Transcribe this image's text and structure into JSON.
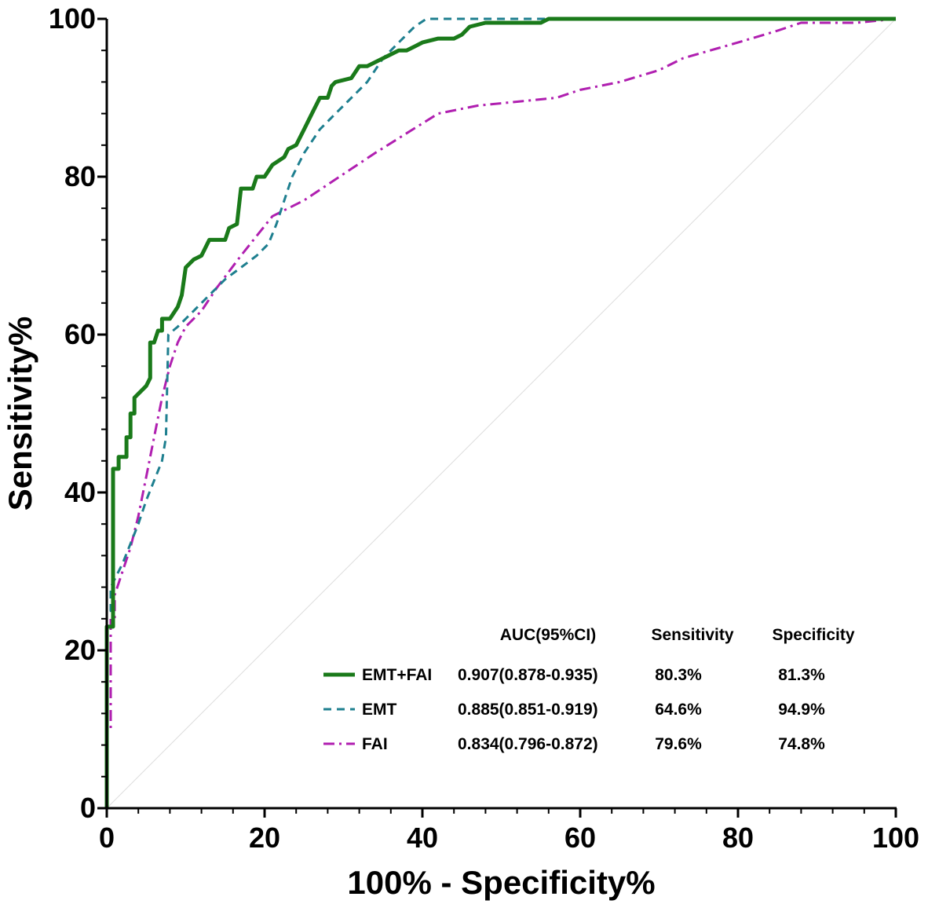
{
  "chart_data": {
    "type": "line",
    "title": "",
    "xlabel": "100% - Specificity%",
    "ylabel": "Sensitivity%",
    "xlim": [
      0,
      100
    ],
    "ylim": [
      0,
      100
    ],
    "x_ticks": [
      "0",
      "20",
      "40",
      "60",
      "80",
      "100"
    ],
    "y_ticks": [
      "0",
      "20",
      "40",
      "60",
      "80",
      "100"
    ],
    "grid": false,
    "legend_position": "bottom-right",
    "reference_line": {
      "name": "chance",
      "points": [
        [
          0,
          0
        ],
        [
          100,
          100
        ]
      ],
      "color": "#dddddd"
    },
    "table_headers": [
      "AUC(95%CI)",
      "Sensitivity",
      "Specificity"
    ],
    "series": [
      {
        "name": "EMT+FAI",
        "auc": "0.907(0.878-0.935)",
        "sensitivity": "80.3%",
        "specificity": "81.3%",
        "color": "#1a7a1a",
        "style": "solid",
        "points": [
          [
            0,
            0
          ],
          [
            0,
            23
          ],
          [
            0.8,
            23
          ],
          [
            0.8,
            43
          ],
          [
            1.5,
            43
          ],
          [
            1.5,
            44.5
          ],
          [
            2.5,
            44.5
          ],
          [
            2.5,
            47
          ],
          [
            3,
            47
          ],
          [
            3,
            50
          ],
          [
            3.5,
            50
          ],
          [
            3.5,
            52
          ],
          [
            5,
            53.5
          ],
          [
            5.5,
            54.5
          ],
          [
            5.5,
            59
          ],
          [
            6,
            59
          ],
          [
            6.5,
            60.5
          ],
          [
            7,
            60.5
          ],
          [
            7,
            62
          ],
          [
            8,
            62
          ],
          [
            9,
            63.5
          ],
          [
            9.5,
            65
          ],
          [
            10,
            68.5
          ],
          [
            11,
            69.5
          ],
          [
            12,
            70
          ],
          [
            13,
            72
          ],
          [
            15,
            72
          ],
          [
            15.5,
            73.5
          ],
          [
            16.5,
            74
          ],
          [
            17,
            78.5
          ],
          [
            18.5,
            78.5
          ],
          [
            19,
            80
          ],
          [
            20,
            80
          ],
          [
            21,
            81.5
          ],
          [
            22.5,
            82.5
          ],
          [
            23,
            83.5
          ],
          [
            24,
            84
          ],
          [
            25,
            86
          ],
          [
            26,
            88
          ],
          [
            27,
            90
          ],
          [
            28,
            90
          ],
          [
            28.5,
            91.5
          ],
          [
            29,
            92
          ],
          [
            31,
            92.5
          ],
          [
            32,
            94
          ],
          [
            33,
            94
          ],
          [
            35,
            95
          ],
          [
            37,
            96
          ],
          [
            38,
            96
          ],
          [
            39,
            96.5
          ],
          [
            40,
            97
          ],
          [
            42,
            97.5
          ],
          [
            44,
            97.5
          ],
          [
            45,
            98
          ],
          [
            46,
            99
          ],
          [
            48,
            99.5
          ],
          [
            55,
            99.5
          ],
          [
            56,
            100
          ],
          [
            100,
            100
          ]
        ]
      },
      {
        "name": "EMT",
        "auc": "0.885(0.851-0.919)",
        "sensitivity": "64.6%",
        "specificity": "94.9%",
        "color": "#1e7f8f",
        "style": "dashed",
        "points": [
          [
            0,
            0
          ],
          [
            0,
            25
          ],
          [
            0.5,
            25
          ],
          [
            0.5,
            28
          ],
          [
            2,
            31
          ],
          [
            4,
            36
          ],
          [
            5,
            39
          ],
          [
            6,
            41.5
          ],
          [
            7,
            44
          ],
          [
            7.5,
            47
          ],
          [
            7.8,
            60
          ],
          [
            9,
            61
          ],
          [
            11,
            63
          ],
          [
            13,
            65
          ],
          [
            15,
            67
          ],
          [
            17,
            68.5
          ],
          [
            19,
            70
          ],
          [
            20.5,
            71.5
          ],
          [
            21.5,
            74
          ],
          [
            22.5,
            77
          ],
          [
            23.5,
            80
          ],
          [
            25,
            83
          ],
          [
            27,
            86
          ],
          [
            29,
            88
          ],
          [
            31,
            90
          ],
          [
            33,
            92
          ],
          [
            35,
            95
          ],
          [
            37,
            97
          ],
          [
            39,
            99
          ],
          [
            40.5,
            100
          ],
          [
            100,
            100
          ]
        ]
      },
      {
        "name": "FAI",
        "auc": "0.834(0.796-0.872)",
        "sensitivity": "79.6%",
        "specificity": "74.8%",
        "color": "#b01fb0",
        "style": "dash-dot",
        "points": [
          [
            0,
            0
          ],
          [
            0,
            10
          ],
          [
            0.5,
            10
          ],
          [
            0.5,
            24
          ],
          [
            1,
            24
          ],
          [
            1,
            27
          ],
          [
            2,
            30
          ],
          [
            3,
            33
          ],
          [
            4,
            37
          ],
          [
            5,
            42
          ],
          [
            6,
            47
          ],
          [
            7,
            52
          ],
          [
            8,
            56
          ],
          [
            9,
            59
          ],
          [
            10,
            61
          ],
          [
            12,
            63
          ],
          [
            14,
            66
          ],
          [
            17,
            70
          ],
          [
            19,
            72.5
          ],
          [
            21,
            75
          ],
          [
            23,
            76
          ],
          [
            25,
            77
          ],
          [
            28,
            79
          ],
          [
            31,
            81
          ],
          [
            34,
            83
          ],
          [
            38,
            85.5
          ],
          [
            42,
            88
          ],
          [
            47,
            89
          ],
          [
            52,
            89.5
          ],
          [
            57,
            90
          ],
          [
            60,
            91
          ],
          [
            65,
            92
          ],
          [
            70,
            93.5
          ],
          [
            73,
            95
          ],
          [
            80,
            97
          ],
          [
            85,
            98.5
          ],
          [
            88,
            99.5
          ],
          [
            90,
            99.5
          ],
          [
            95,
            99.5
          ],
          [
            100,
            100
          ]
        ]
      }
    ]
  }
}
